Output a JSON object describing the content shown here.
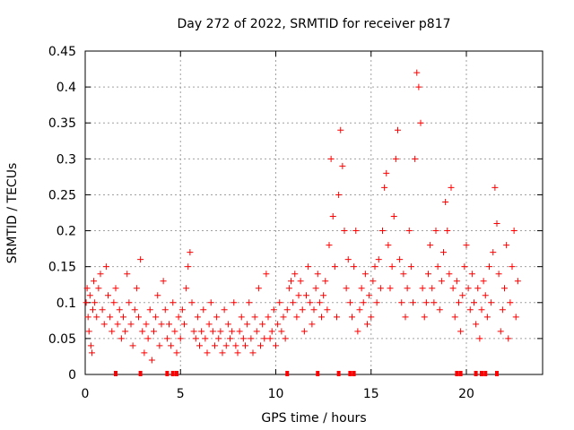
{
  "chart_data": {
    "type": "scatter",
    "title": "Day 272 of 2022, SRMTID for receiver p817",
    "xlabel": "GPS time / hours",
    "ylabel": "SRMTID / TECUs",
    "xlim": [
      0,
      24
    ],
    "ylim": [
      0,
      0.45
    ],
    "xticks": [
      0,
      5,
      10,
      15,
      20
    ],
    "yticks": [
      0,
      0.05,
      0.1,
      0.15,
      0.2,
      0.25,
      0.3,
      0.35,
      0.4,
      0.45
    ],
    "xtick_labels": [
      "0",
      "5",
      "10",
      "15",
      "20"
    ],
    "ytick_labels": [
      "0",
      "0.05",
      "0.1",
      "0.15",
      "0.2",
      "0.25",
      "0.3",
      "0.35",
      "0.4",
      "0.45"
    ],
    "grid": true,
    "marker": "+",
    "color": "#ff0000",
    "series": [
      {
        "name": "SRMTID",
        "points": [
          [
            0.05,
            0.1
          ],
          [
            0.1,
            0.12
          ],
          [
            0.15,
            0.08
          ],
          [
            0.2,
            0.06
          ],
          [
            0.25,
            0.11
          ],
          [
            0.3,
            0.04
          ],
          [
            0.35,
            0.03
          ],
          [
            0.4,
            0.09
          ],
          [
            0.45,
            0.13
          ],
          [
            0.5,
            0.1
          ],
          [
            0.6,
            0.08
          ],
          [
            0.7,
            0.12
          ],
          [
            0.8,
            0.14
          ],
          [
            0.9,
            0.09
          ],
          [
            1.0,
            0.07
          ],
          [
            1.1,
            0.15
          ],
          [
            1.2,
            0.11
          ],
          [
            1.3,
            0.08
          ],
          [
            1.4,
            0.06
          ],
          [
            1.5,
            0.1
          ],
          [
            1.6,
            0.12
          ],
          [
            1.7,
            0.07
          ],
          [
            1.8,
            0.09
          ],
          [
            1.9,
            0.05
          ],
          [
            2.0,
            0.08
          ],
          [
            2.1,
            0.06
          ],
          [
            2.2,
            0.14
          ],
          [
            2.3,
            0.1
          ],
          [
            2.4,
            0.07
          ],
          [
            2.5,
            0.04
          ],
          [
            2.6,
            0.09
          ],
          [
            2.7,
            0.12
          ],
          [
            2.8,
            0.08
          ],
          [
            2.9,
            0.16
          ],
          [
            3.0,
            0.06
          ],
          [
            3.1,
            0.03
          ],
          [
            3.2,
            0.07
          ],
          [
            3.3,
            0.05
          ],
          [
            3.4,
            0.09
          ],
          [
            3.5,
            0.02
          ],
          [
            3.6,
            0.06
          ],
          [
            3.7,
            0.08
          ],
          [
            3.8,
            0.11
          ],
          [
            3.9,
            0.04
          ],
          [
            4.0,
            0.07
          ],
          [
            4.1,
            0.13
          ],
          [
            4.2,
            0.09
          ],
          [
            4.3,
            0.05
          ],
          [
            4.4,
            0.07
          ],
          [
            4.5,
            0.04
          ],
          [
            4.6,
            0.1
          ],
          [
            4.7,
            0.06
          ],
          [
            4.8,
            0.03
          ],
          [
            4.9,
            0.08
          ],
          [
            5.0,
            0.05
          ],
          [
            5.1,
            0.09
          ],
          [
            5.2,
            0.07
          ],
          [
            5.3,
            0.12
          ],
          [
            5.4,
            0.15
          ],
          [
            5.5,
            0.17
          ],
          [
            5.6,
            0.1
          ],
          [
            5.7,
            0.06
          ],
          [
            5.8,
            0.05
          ],
          [
            5.9,
            0.08
          ],
          [
            6.0,
            0.04
          ],
          [
            6.1,
            0.06
          ],
          [
            6.2,
            0.09
          ],
          [
            6.3,
            0.05
          ],
          [
            6.4,
            0.03
          ],
          [
            6.5,
            0.07
          ],
          [
            6.6,
            0.1
          ],
          [
            6.7,
            0.06
          ],
          [
            6.8,
            0.04
          ],
          [
            6.9,
            0.08
          ],
          [
            7.0,
            0.05
          ],
          [
            7.1,
            0.06
          ],
          [
            7.2,
            0.03
          ],
          [
            7.3,
            0.09
          ],
          [
            7.4,
            0.04
          ],
          [
            7.5,
            0.07
          ],
          [
            7.6,
            0.05
          ],
          [
            7.7,
            0.06
          ],
          [
            7.8,
            0.1
          ],
          [
            7.9,
            0.04
          ],
          [
            8.0,
            0.03
          ],
          [
            8.1,
            0.06
          ],
          [
            8.2,
            0.08
          ],
          [
            8.3,
            0.05
          ],
          [
            8.4,
            0.04
          ],
          [
            8.5,
            0.07
          ],
          [
            8.6,
            0.1
          ],
          [
            8.7,
            0.05
          ],
          [
            8.8,
            0.03
          ],
          [
            8.9,
            0.08
          ],
          [
            9.0,
            0.06
          ],
          [
            9.1,
            0.12
          ],
          [
            9.2,
            0.04
          ],
          [
            9.3,
            0.07
          ],
          [
            9.4,
            0.05
          ],
          [
            9.5,
            0.14
          ],
          [
            9.6,
            0.08
          ],
          [
            9.7,
            0.05
          ],
          [
            9.8,
            0.06
          ],
          [
            9.9,
            0.09
          ],
          [
            10.0,
            0.04
          ],
          [
            10.1,
            0.07
          ],
          [
            10.2,
            0.1
          ],
          [
            10.3,
            0.06
          ],
          [
            10.4,
            0.08
          ],
          [
            10.5,
            0.05
          ],
          [
            10.6,
            0.09
          ],
          [
            10.7,
            0.12
          ],
          [
            10.8,
            0.13
          ],
          [
            10.9,
            0.1
          ],
          [
            11.0,
            0.14
          ],
          [
            11.1,
            0.08
          ],
          [
            11.2,
            0.11
          ],
          [
            11.3,
            0.13
          ],
          [
            11.4,
            0.09
          ],
          [
            11.5,
            0.06
          ],
          [
            11.6,
            0.11
          ],
          [
            11.7,
            0.15
          ],
          [
            11.8,
            0.1
          ],
          [
            11.9,
            0.07
          ],
          [
            12.0,
            0.09
          ],
          [
            12.1,
            0.12
          ],
          [
            12.2,
            0.14
          ],
          [
            12.3,
            0.1
          ],
          [
            12.4,
            0.08
          ],
          [
            12.5,
            0.11
          ],
          [
            12.6,
            0.13
          ],
          [
            12.7,
            0.09
          ],
          [
            12.8,
            0.18
          ],
          [
            12.9,
            0.3
          ],
          [
            13.0,
            0.22
          ],
          [
            13.1,
            0.15
          ],
          [
            13.2,
            0.08
          ],
          [
            13.3,
            0.25
          ],
          [
            13.4,
            0.34
          ],
          [
            13.5,
            0.29
          ],
          [
            13.6,
            0.2
          ],
          [
            13.7,
            0.12
          ],
          [
            13.8,
            0.16
          ],
          [
            13.9,
            0.1
          ],
          [
            14.0,
            0.08
          ],
          [
            14.1,
            0.15
          ],
          [
            14.2,
            0.2
          ],
          [
            14.3,
            0.06
          ],
          [
            14.4,
            0.09
          ],
          [
            14.5,
            0.12
          ],
          [
            14.6,
            0.1
          ],
          [
            14.7,
            0.14
          ],
          [
            14.8,
            0.07
          ],
          [
            14.9,
            0.11
          ],
          [
            15.0,
            0.08
          ],
          [
            15.1,
            0.13
          ],
          [
            15.2,
            0.15
          ],
          [
            15.3,
            0.1
          ],
          [
            15.4,
            0.16
          ],
          [
            15.5,
            0.12
          ],
          [
            15.6,
            0.2
          ],
          [
            15.7,
            0.26
          ],
          [
            15.8,
            0.28
          ],
          [
            15.9,
            0.18
          ],
          [
            16.0,
            0.12
          ],
          [
            16.1,
            0.15
          ],
          [
            16.2,
            0.22
          ],
          [
            16.3,
            0.3
          ],
          [
            16.4,
            0.34
          ],
          [
            16.5,
            0.16
          ],
          [
            16.6,
            0.1
          ],
          [
            16.7,
            0.14
          ],
          [
            16.8,
            0.08
          ],
          [
            16.9,
            0.12
          ],
          [
            17.0,
            0.2
          ],
          [
            17.1,
            0.15
          ],
          [
            17.2,
            0.1
          ],
          [
            17.3,
            0.3
          ],
          [
            17.4,
            0.42
          ],
          [
            17.5,
            0.4
          ],
          [
            17.6,
            0.35
          ],
          [
            17.7,
            0.12
          ],
          [
            17.8,
            0.08
          ],
          [
            17.9,
            0.1
          ],
          [
            18.0,
            0.14
          ],
          [
            18.1,
            0.18
          ],
          [
            18.2,
            0.12
          ],
          [
            18.3,
            0.1
          ],
          [
            18.4,
            0.2
          ],
          [
            18.5,
            0.15
          ],
          [
            18.6,
            0.09
          ],
          [
            18.7,
            0.13
          ],
          [
            18.8,
            0.17
          ],
          [
            18.9,
            0.24
          ],
          [
            19.0,
            0.2
          ],
          [
            19.1,
            0.14
          ],
          [
            19.2,
            0.26
          ],
          [
            19.3,
            0.12
          ],
          [
            19.4,
            0.08
          ],
          [
            19.5,
            0.13
          ],
          [
            19.6,
            0.1
          ],
          [
            19.7,
            0.06
          ],
          [
            19.8,
            0.11
          ],
          [
            19.9,
            0.15
          ],
          [
            20.0,
            0.18
          ],
          [
            20.1,
            0.12
          ],
          [
            20.2,
            0.09
          ],
          [
            20.3,
            0.14
          ],
          [
            20.4,
            0.1
          ],
          [
            20.5,
            0.07
          ],
          [
            20.6,
            0.12
          ],
          [
            20.7,
            0.05
          ],
          [
            20.8,
            0.09
          ],
          [
            20.9,
            0.13
          ],
          [
            21.0,
            0.11
          ],
          [
            21.1,
            0.08
          ],
          [
            21.2,
            0.15
          ],
          [
            21.3,
            0.1
          ],
          [
            21.4,
            0.17
          ],
          [
            21.5,
            0.26
          ],
          [
            21.6,
            0.21
          ],
          [
            21.7,
            0.14
          ],
          [
            21.8,
            0.06
          ],
          [
            21.9,
            0.09
          ],
          [
            22.0,
            0.12
          ],
          [
            22.1,
            0.18
          ],
          [
            22.2,
            0.05
          ],
          [
            22.3,
            0.1
          ],
          [
            22.4,
            0.15
          ],
          [
            22.5,
            0.2
          ],
          [
            22.6,
            0.08
          ],
          [
            22.7,
            0.13
          ]
        ]
      }
    ],
    "baseline_marks_x": [
      1.6,
      2.9,
      4.3,
      4.6,
      4.8,
      10.6,
      12.2,
      13.3,
      13.9,
      14.1,
      19.5,
      19.7,
      20.5,
      20.8,
      21.0,
      21.6
    ]
  }
}
